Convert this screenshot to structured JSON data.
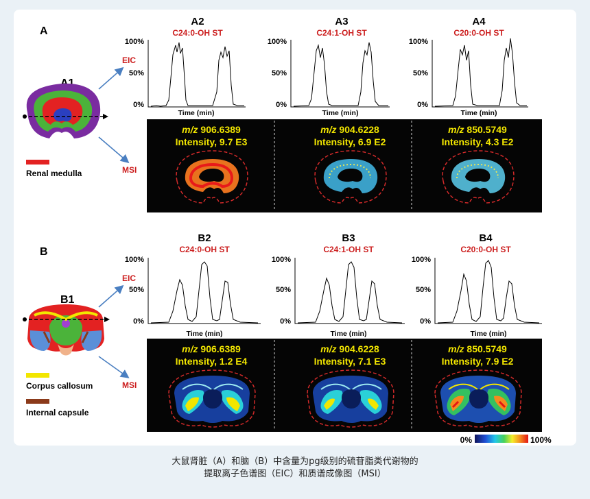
{
  "caption": {
    "line1": "大鼠肾脏（A）和脑（B）中含量为pg级别的硫苷脂类代谢物的",
    "line2": "提取离子色谱图（EIC）和质谱成像图（MSI）"
  },
  "labels": {
    "eic": "EIC",
    "msi": "MSI",
    "time_axis": "Time (min)"
  },
  "yticks": [
    "100%",
    "50%",
    "0%"
  ],
  "panels": [
    {
      "id": "A",
      "letter": "A",
      "overview_label": "A1",
      "legend": [
        {
          "label": "Renal medulla",
          "color": "#e32222"
        }
      ],
      "subpanels": [
        {
          "label": "A2",
          "compound": "C24:0-OH ST",
          "mz_prefix": "m/z",
          "mz": "906.6389",
          "intensity": "Intensity, 9.7 E3"
        },
        {
          "label": "A3",
          "compound": "C24:1-OH ST",
          "mz_prefix": "m/z",
          "mz": "904.6228",
          "intensity": "Intensity, 6.9 E2"
        },
        {
          "label": "A4",
          "compound": "C20:0-OH ST",
          "mz_prefix": "m/z",
          "mz": "850.5749",
          "intensity": "Intensity, 4.3 E2"
        }
      ]
    },
    {
      "id": "B",
      "letter": "B",
      "overview_label": "B1",
      "legend": [
        {
          "label": "Corpus callosum",
          "color": "#f2e600"
        },
        {
          "label": "Internal capsule",
          "color": "#8b3a1a"
        }
      ],
      "subpanels": [
        {
          "label": "B2",
          "compound": "C24:0-OH ST",
          "mz_prefix": "m/z",
          "mz": "906.6389",
          "intensity": "Intensity, 1.2 E4"
        },
        {
          "label": "B3",
          "compound": "C24:1-OH ST",
          "mz_prefix": "m/z",
          "mz": "904.6228",
          "intensity": "Intensity, 7.1 E3"
        },
        {
          "label": "B4",
          "compound": "C20:0-OH ST",
          "mz_prefix": "m/z",
          "mz": "850.5749",
          "intensity": "Intensity, 7.9 E2"
        }
      ]
    }
  ],
  "colorbar": {
    "min_label": "0%",
    "max_label": "100%"
  },
  "colors": {
    "compound": "#cc1f1f",
    "msi_text": "#f2e600",
    "arrow": "#4a7fc1",
    "callout": "#cc1f1f"
  }
}
